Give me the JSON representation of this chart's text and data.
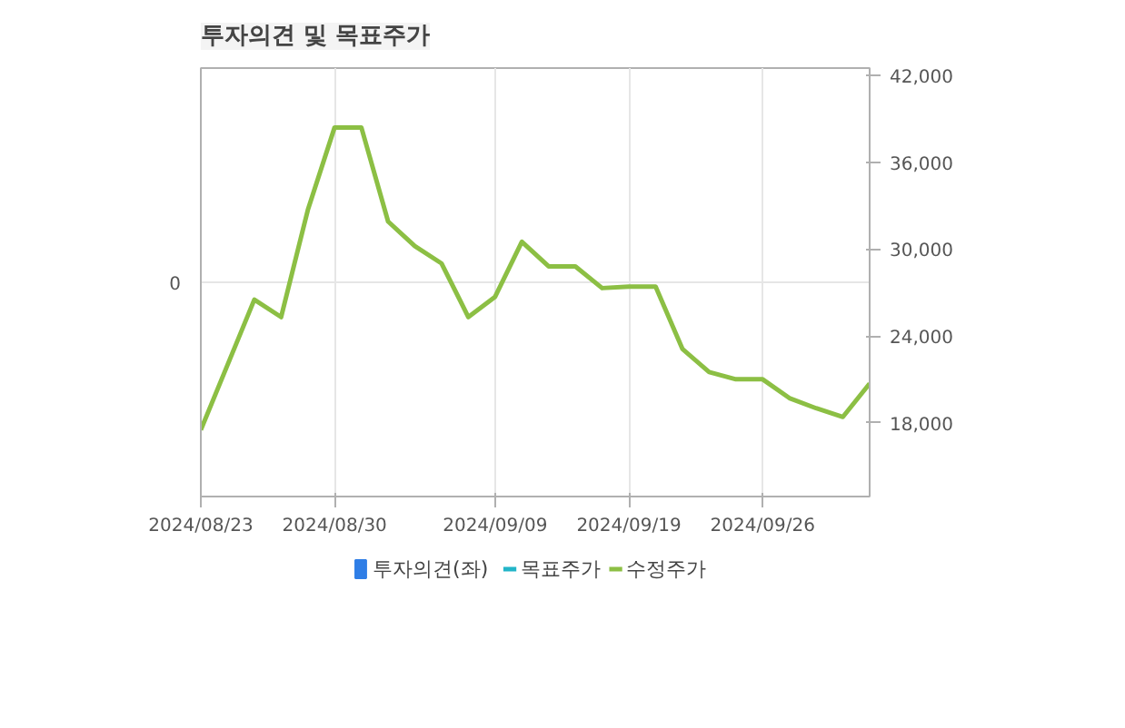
{
  "chart_data": {
    "type": "line",
    "title": "투자의견 및 목표주가",
    "categories": [
      "2024/08/23",
      null,
      null,
      null,
      null,
      "2024/08/30",
      null,
      null,
      null,
      null,
      null,
      "2024/09/09",
      null,
      null,
      null,
      null,
      "2024/09/19",
      null,
      null,
      null,
      null,
      "2024/09/26",
      null,
      null,
      null,
      null
    ],
    "series": [
      {
        "name": "투자의견(좌)",
        "type": "bar",
        "color": "#2f7ee6",
        "values": [
          null,
          null,
          null,
          null,
          null,
          null,
          null,
          null,
          null,
          null,
          null,
          null,
          null,
          null,
          null,
          null,
          null,
          null,
          null,
          null,
          null,
          null,
          null,
          null,
          null,
          null
        ]
      },
      {
        "name": "목표주가",
        "axis": "y2",
        "color": "#22b5c8",
        "values": [
          null,
          null,
          null,
          null,
          null,
          null,
          null,
          null,
          null,
          null,
          null,
          null,
          null,
          null,
          null,
          null,
          null,
          null,
          null,
          null,
          null,
          null,
          null,
          null,
          null,
          null
        ]
      },
      {
        "name": "수정주가",
        "axis": "y2",
        "color": "#8cbf44",
        "values": [
          17500,
          22000,
          26500,
          25300,
          32700,
          38400,
          38400,
          31900,
          30200,
          29000,
          25300,
          26700,
          30500,
          28800,
          28800,
          27300,
          27400,
          27400,
          23100,
          21500,
          21000,
          21000,
          19700,
          19000,
          18400,
          20700
        ]
      }
    ],
    "annotations": [
      "0"
    ],
    "y2lim": [
      12900,
      42500
    ],
    "y2ticks": [
      {
        "value": 18000,
        "label": "18,000"
      },
      {
        "value": 24000,
        "label": "24,000"
      },
      {
        "value": 30000,
        "label": "30,000"
      },
      {
        "value": 36000,
        "label": "36,000"
      },
      {
        "value": 42000,
        "label": "42,000"
      }
    ],
    "grid": true,
    "legend": "bottom"
  }
}
